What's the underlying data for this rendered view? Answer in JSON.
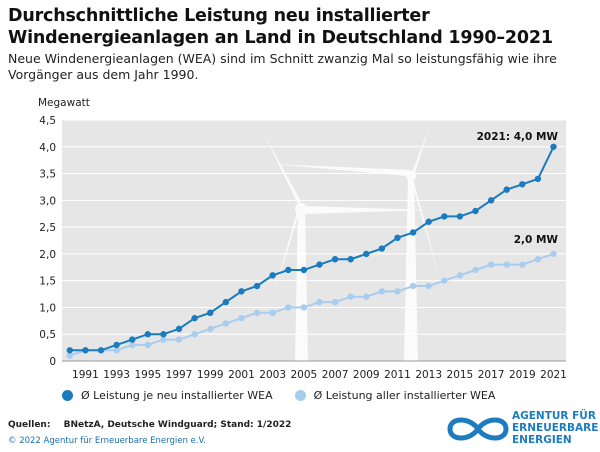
{
  "header": {
    "title": "Durchschnittliche Leistung neu installierter Windenergieanlagen an Land in Deutschland 1990–2021",
    "subtitle": "Neue Windenergieanlagen (WEA) sind im Schnitt zwanzig Mal so leistungsfähig wie ihre Vorgänger aus dem Jahr 1990."
  },
  "footer": {
    "source_label": "Quellen:",
    "source_text": "BNetzA, Deutsche Windguard; Stand: 1/2022",
    "copyright": "© 2022 Agentur für Erneuerbare Energien e.V.",
    "logo_lines": [
      "AGENTUR FÜR",
      "ERNEUERBARE",
      "ENERGIEN"
    ]
  },
  "colors": {
    "series_new": "#1a7bbf",
    "series_all": "#a9cdee",
    "plot_background": "#e6e6e6"
  },
  "chart_data": {
    "type": "line",
    "title": "Durchschnittliche Leistung neu installierter Windenergieanlagen an Land in Deutschland 1990–2021",
    "ylabel": "Megawatt",
    "xlabel": "",
    "ylim": [
      0,
      4.5
    ],
    "yticks": [
      "0",
      "0,5",
      "1,0",
      "1,5",
      "2,0",
      "2,5",
      "3,0",
      "3,5",
      "4,0",
      "4,5"
    ],
    "xtick_labels": [
      "1991",
      "1993",
      "1995",
      "1997",
      "1999",
      "2001",
      "2003",
      "2005",
      "2007",
      "2009",
      "2011",
      "2013",
      "2015",
      "2017",
      "2019",
      "2021"
    ],
    "x": [
      1990,
      1991,
      1992,
      1993,
      1994,
      1995,
      1996,
      1997,
      1998,
      1999,
      2000,
      2001,
      2002,
      2003,
      2004,
      2005,
      2006,
      2007,
      2008,
      2009,
      2010,
      2011,
      2012,
      2013,
      2014,
      2015,
      2016,
      2017,
      2018,
      2019,
      2020,
      2021
    ],
    "grid": true,
    "legend_position": "bottom",
    "series": [
      {
        "name": "Ø Leistung je neu installierter WEA",
        "values": [
          0.2,
          0.2,
          0.2,
          0.3,
          0.4,
          0.5,
          0.5,
          0.6,
          0.8,
          0.9,
          1.1,
          1.3,
          1.4,
          1.6,
          1.7,
          1.7,
          1.8,
          1.9,
          1.9,
          2.0,
          2.1,
          2.3,
          2.4,
          2.6,
          2.7,
          2.7,
          2.8,
          3.0,
          3.2,
          3.3,
          3.4,
          4.0
        ]
      },
      {
        "name": "Ø Leistung aller installierter WEA",
        "values": [
          0.1,
          0.2,
          0.2,
          0.2,
          0.3,
          0.3,
          0.4,
          0.4,
          0.5,
          0.6,
          0.7,
          0.8,
          0.9,
          0.9,
          1.0,
          1.0,
          1.1,
          1.1,
          1.2,
          1.2,
          1.3,
          1.3,
          1.4,
          1.4,
          1.5,
          1.6,
          1.7,
          1.8,
          1.8,
          1.8,
          1.9,
          2.0
        ]
      }
    ],
    "annotations": [
      "2021: 4,0 MW",
      "2,0 MW"
    ]
  }
}
